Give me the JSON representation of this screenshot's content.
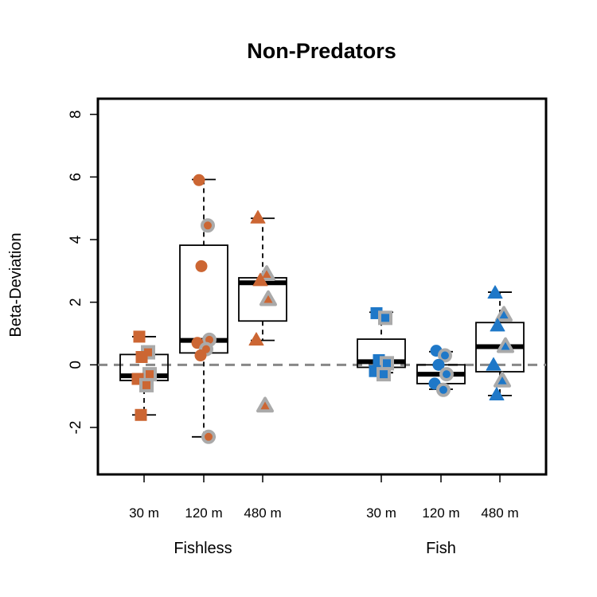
{
  "chart_data": {
    "type": "box",
    "title": "Non-Predators",
    "ylabel": "Beta-Deviation",
    "xlabel": "",
    "ylim": [
      -3.5,
      8.5
    ],
    "yticks": [
      -2,
      0,
      2,
      4,
      6,
      8
    ],
    "reference_line": 0,
    "group_labels": [
      "Fishless",
      "Fish"
    ],
    "colors": {
      "fishless": "#cc6633",
      "fish": "#1f78c8",
      "point_outline": "#aaaaaa"
    },
    "boxes": [
      {
        "group": "Fishless",
        "label": "30 m",
        "shape": "square",
        "color": "#cc6633",
        "whisker_low": -1.6,
        "q1": -0.5,
        "median": -0.35,
        "q3": 0.33,
        "whisker_high": 0.9,
        "points": [
          0.9,
          0.4,
          0.25,
          -0.3,
          -0.45,
          -0.65,
          -1.6
        ]
      },
      {
        "group": "Fishless",
        "label": "120 m",
        "shape": "circle",
        "color": "#cc6633",
        "whisker_low": -2.3,
        "q1": 0.38,
        "median": 0.78,
        "q3": 3.82,
        "whisker_high": 5.92,
        "points": [
          5.9,
          4.45,
          3.15,
          0.8,
          0.7,
          0.5,
          0.3,
          -2.3
        ]
      },
      {
        "group": "Fishless",
        "label": "480 m",
        "shape": "triangle",
        "color": "#cc6633",
        "whisker_low": 0.78,
        "q1": 1.4,
        "median": 2.62,
        "q3": 2.78,
        "whisker_high": 4.68,
        "points": [
          4.7,
          2.9,
          2.7,
          2.1,
          0.8,
          -1.3
        ]
      },
      {
        "group": "Fish",
        "label": "30 m",
        "shape": "square",
        "color": "#1f78c8",
        "whisker_low": -0.25,
        "q1": -0.08,
        "median": 0.1,
        "q3": 0.82,
        "whisker_high": 1.68,
        "points": [
          1.65,
          1.5,
          0.15,
          0.05,
          -0.2,
          -0.3
        ]
      },
      {
        "group": "Fish",
        "label": "120 m",
        "shape": "circle",
        "color": "#1f78c8",
        "whisker_low": -0.78,
        "q1": -0.6,
        "median": -0.3,
        "q3": 0.0,
        "whisker_high": 0.42,
        "points": [
          0.45,
          0.3,
          0.0,
          -0.3,
          -0.6,
          -0.8
        ]
      },
      {
        "group": "Fish",
        "label": "480 m",
        "shape": "triangle",
        "color": "#1f78c8",
        "whisker_low": -0.98,
        "q1": -0.22,
        "median": 0.58,
        "q3": 1.35,
        "whisker_high": 2.32,
        "points": [
          2.3,
          1.6,
          1.25,
          0.6,
          0.0,
          -0.5,
          -0.95
        ]
      }
    ]
  }
}
